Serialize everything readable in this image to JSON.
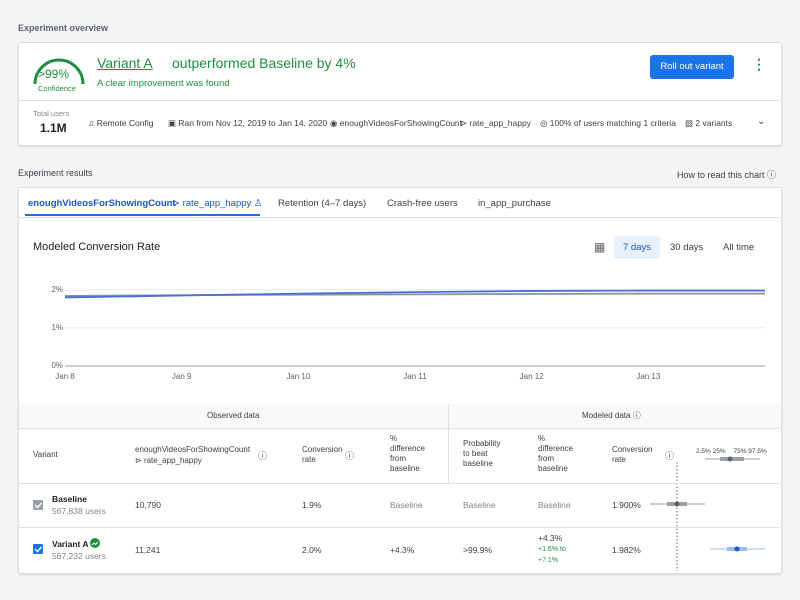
{
  "overview": {
    "heading": "Experiment overview",
    "confidence_value": ">99%",
    "confidence_label": "Confidence",
    "headline_variant": "Variant A",
    "headline_text": "outperformed Baseline by 4%",
    "subtitle": "A clear improvement was found",
    "button": "Roll out variant",
    "total_users_label": "Total users",
    "total_users": "1.1M",
    "meta": [
      "Remote Config",
      "Ran from Nov 12, 2019 to Jan 14, 2020",
      "enoughVideosForShowingCount",
      "rate_app_happy",
      "100% of users matching 1 criteria",
      "2 variants"
    ]
  },
  "results": {
    "heading": "Experiment results",
    "help_link": "How to read this chart",
    "tabs": [
      "enoughVideosForShowingCount",
      "rate_app_happy",
      "Retention (4–7 days)",
      "Crash-free users",
      "in_app_purchase"
    ],
    "ranges": [
      "7 days",
      "30 days",
      "All time"
    ]
  },
  "chart_data": {
    "type": "line",
    "title": "Modeled Conversion Rate",
    "categories": [
      "Jan 8",
      "Jan 9",
      "Jan 10",
      "Jan 11",
      "Jan 12",
      "Jan 13",
      null
    ],
    "series": [
      {
        "color": "#8e9399",
        "values": [
          1.84,
          1.86,
          1.87,
          1.88,
          1.89,
          1.9,
          1.9
        ]
      },
      {
        "color": "#4a6fd6",
        "values": [
          1.8,
          1.85,
          1.9,
          1.94,
          1.97,
          1.98,
          1.98
        ]
      }
    ],
    "ylim": [
      0,
      2.1
    ],
    "yticks": [
      {
        "value": 0,
        "label": "0%"
      },
      {
        "value": 1,
        "label": "1%"
      },
      {
        "value": 2,
        "label": "2%"
      }
    ],
    "grid": true
  },
  "table": {
    "groups": [
      "Observed data",
      "Modeled data"
    ],
    "columns": [
      "Variant",
      "enoughVideosForShowingCount",
      "rate_app_happy",
      "Conversion rate",
      "% difference from baseline",
      "Probability to beat baseline",
      "% difference from baseline",
      "Conversion rate"
    ],
    "interval_labels": [
      "2.5%",
      "25%",
      "75%",
      "97.5%"
    ],
    "rows": [
      {
        "name": "Baseline",
        "users": "567,838 users",
        "observed": "10,790",
        "observed_rate": "1.9%",
        "observed_diff": "Baseline",
        "probability": "Baseline",
        "modeled_diff": "Baseline",
        "modeled_rate": "1.900%"
      },
      {
        "name": "Variant A",
        "users": "567,232 users",
        "observed": "11,241",
        "observed_rate": "2.0%",
        "observed_diff": "+4.3%",
        "probability": ">99.9%",
        "modeled_diff": "+4.3%",
        "modeled_range": [
          "+1.6% to",
          "+7.1%"
        ],
        "modeled_rate": "1.982%"
      }
    ]
  }
}
